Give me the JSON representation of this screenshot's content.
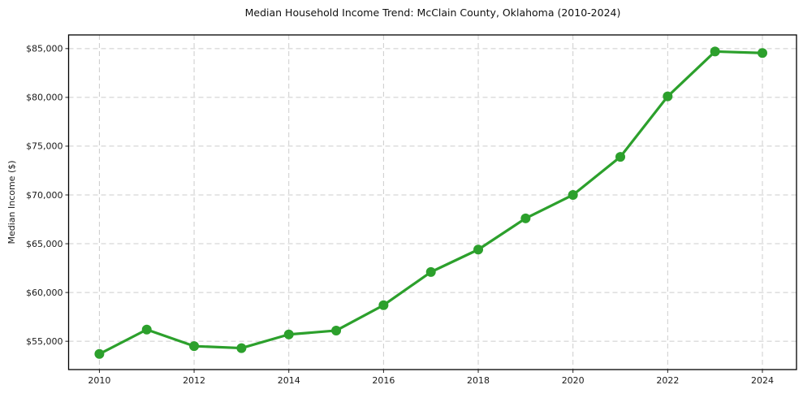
{
  "chart_data": {
    "type": "line",
    "title": "Median Household Income Trend: McClain County, Oklahoma (2010-2024)",
    "xlabel": "",
    "ylabel": "Median Income ($)",
    "series_name": "Median household income",
    "x": [
      2010,
      2011,
      2012,
      2013,
      2014,
      2015,
      2016,
      2017,
      2018,
      2019,
      2020,
      2021,
      2022,
      2023,
      2024
    ],
    "values": [
      53700,
      56200,
      54500,
      54300,
      55700,
      56100,
      58700,
      62100,
      64400,
      67600,
      70000,
      73900,
      80100,
      84700,
      84550
    ],
    "xticks": [
      2010,
      2012,
      2014,
      2016,
      2018,
      2020,
      2022,
      2024
    ],
    "xtick_labels": [
      "2010",
      "2012",
      "2014",
      "2016",
      "2018",
      "2020",
      "2022",
      "2024"
    ],
    "yticks": [
      55000,
      60000,
      65000,
      70000,
      75000,
      80000,
      85000
    ],
    "ytick_labels": [
      "$55,000",
      "$60,000",
      "$65,000",
      "$70,000",
      "$75,000",
      "$80,000",
      "$85,000"
    ],
    "xlim": [
      2009.35,
      2024.72
    ],
    "ylim": [
      52100,
      86400
    ],
    "grid": "both, dashed",
    "legend": "none",
    "line_color": "#2ca02c",
    "marker": "circle",
    "marker_color": "#2ca02c",
    "grid_color": "#cccccc",
    "background_color": "#ffffff"
  }
}
